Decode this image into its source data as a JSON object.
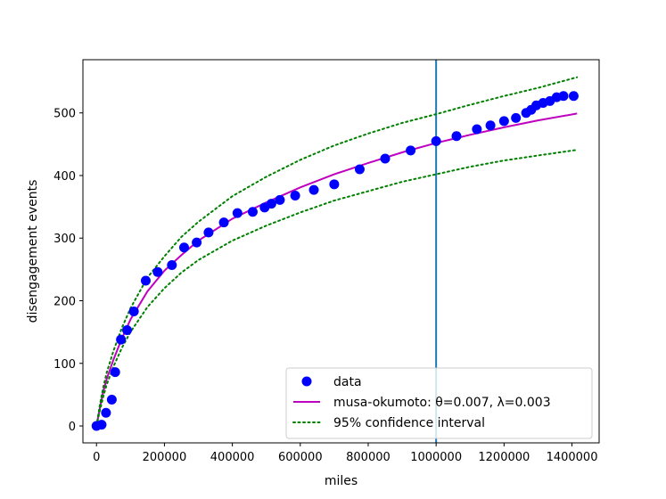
{
  "chart_data": {
    "type": "scatter",
    "xlabel": "miles",
    "ylabel": "disengagement events",
    "xlim": [
      -40000,
      1480000
    ],
    "ylim": [
      -27,
      585
    ],
    "xticks": [
      0,
      200000,
      400000,
      600000,
      800000,
      1000000,
      1200000,
      1400000
    ],
    "xtick_labels": [
      "0",
      "200000",
      "400000",
      "600000",
      "800000",
      "1000000",
      "1200000",
      "1400000"
    ],
    "yticks": [
      0,
      100,
      200,
      300,
      400,
      500
    ],
    "ytick_labels": [
      "0",
      "100",
      "200",
      "300",
      "400",
      "500"
    ],
    "grid": false,
    "legend_position": "lower-right",
    "vertical_line": {
      "x": 1000000,
      "color": "#1f77b4"
    },
    "series": [
      {
        "name": "data",
        "kind": "scatter",
        "color": "#0000ff",
        "x": [
          0,
          15000,
          28000,
          45000,
          55000,
          72000,
          90000,
          110000,
          145000,
          180000,
          222000,
          258000,
          295000,
          330000,
          375000,
          415000,
          460000,
          495000,
          515000,
          540000,
          585000,
          640000,
          700000,
          775000,
          850000,
          925000,
          1000000,
          1060000,
          1120000,
          1160000,
          1200000,
          1235000,
          1265000,
          1280000,
          1295000,
          1315000,
          1335000,
          1355000,
          1375000,
          1405000
        ],
        "y": [
          0,
          2,
          21,
          42,
          86,
          138,
          153,
          183,
          232,
          246,
          257,
          285,
          293,
          309,
          325,
          340,
          342,
          349,
          355,
          361,
          368,
          377,
          386,
          410,
          427,
          440,
          455,
          463,
          474,
          480,
          487,
          492,
          500,
          505,
          512,
          516,
          519,
          525,
          527,
          527
        ]
      },
      {
        "name": "musa-okumoto: θ=0.007, λ=0.003",
        "kind": "line",
        "color": "#bf00bf",
        "style": "solid",
        "x": [
          0,
          10000,
          20000,
          30000,
          50000,
          75000,
          100000,
          150000,
          200000,
          250000,
          300000,
          400000,
          500000,
          600000,
          700000,
          800000,
          900000,
          1000000,
          1100000,
          1200000,
          1300000,
          1415000
        ],
        "y": [
          0,
          29,
          55,
          75,
          106,
          140,
          170,
          215,
          248,
          273,
          296,
          331,
          357,
          381,
          402,
          420,
          437,
          452,
          465,
          477,
          488,
          499
        ]
      },
      {
        "name": "95% confidence interval",
        "kind": "line",
        "color": "#008000",
        "style": "dotted",
        "x": [
          0,
          10000,
          20000,
          30000,
          50000,
          75000,
          100000,
          150000,
          200000,
          250000,
          300000,
          400000,
          500000,
          600000,
          700000,
          800000,
          900000,
          1000000,
          1100000,
          1200000,
          1300000,
          1415000
        ],
        "y": [
          0,
          34,
          62,
          85,
          120,
          157,
          188,
          237,
          271,
          302,
          326,
          367,
          398,
          425,
          448,
          467,
          484,
          498,
          513,
          527,
          540,
          557
        ]
      },
      {
        "name": "95% confidence interval",
        "kind": "line",
        "color": "#008000",
        "style": "dotted",
        "legend": false,
        "x": [
          0,
          10000,
          20000,
          30000,
          50000,
          75000,
          100000,
          150000,
          200000,
          250000,
          300000,
          400000,
          500000,
          600000,
          700000,
          800000,
          900000,
          1000000,
          1100000,
          1200000,
          1300000,
          1415000
        ],
        "y": [
          0,
          25,
          47,
          66,
          95,
          125,
          150,
          190,
          220,
          245,
          265,
          296,
          320,
          341,
          360,
          375,
          390,
          402,
          414,
          424,
          432,
          441
        ]
      }
    ]
  }
}
